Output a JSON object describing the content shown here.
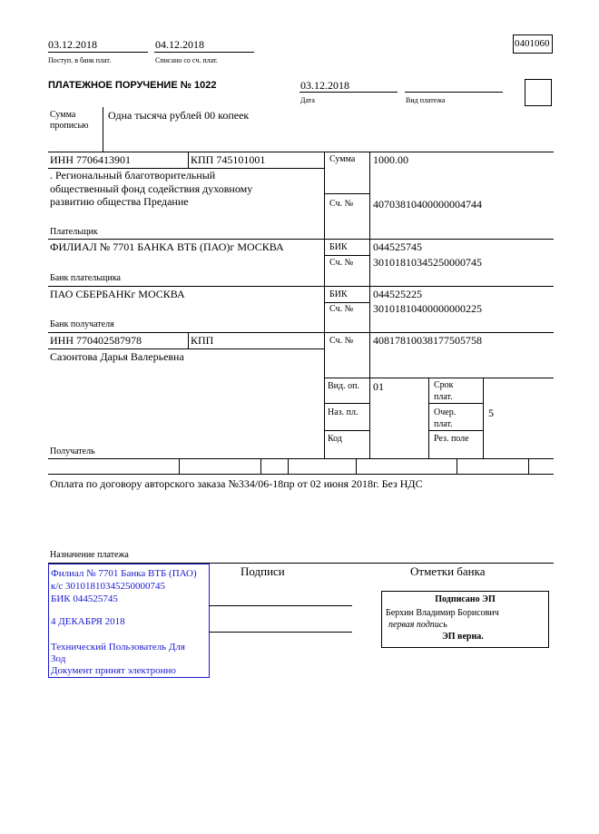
{
  "header": {
    "received_date": "03.12.2018",
    "received_label": "Поступ. в банк плат.",
    "debited_date": "04.12.2018",
    "debited_label": "Списано со сч. плат.",
    "form_code": "0401060"
  },
  "title": "ПЛАТЕЖНОЕ ПОРУЧЕНИЕ № 1022",
  "date": "03.12.2018",
  "date_label": "Дата",
  "payment_type_label": "Вид платежа",
  "amount_words_label_1": "Сумма",
  "amount_words_label_2": "прописью",
  "amount_words": "Одна тысяча рублей 00 копеек",
  "payer": {
    "inn": "ИНН 7706413901",
    "kpp": "КПП 745101001",
    "name_1": ". Региональный благотворительный",
    "name_2": "общественный фонд содействия духовному",
    "name_3": "развитию общества Предание",
    "label": "Плательщик",
    "account_label": "Сч. №",
    "account": "40703810400000004744"
  },
  "amount_label": "Сумма",
  "amount": "1000.00",
  "payer_bank": {
    "name": "ФИЛИАЛ № 7701 БАНКА ВТБ (ПАО)г МОСКВА",
    "label": "Банк плательщика",
    "bik_label": "БИК",
    "bik": "044525745",
    "acc_label": "Сч. №",
    "acc": "30101810345250000745"
  },
  "payee_bank": {
    "name": "ПАО СБЕРБАНКг МОСКВА",
    "label": "Банк получателя",
    "bik_label": "БИК",
    "bik": "044525225",
    "acc_label": "Сч. №",
    "acc": "30101810400000000225"
  },
  "payee": {
    "inn": "ИНН 770402587978",
    "kpp": "КПП",
    "name": "Сазонтова Дарья Валерьевна",
    "label": "Получатель",
    "account_label": "Сч. №",
    "account": "40817810038177505758"
  },
  "codes": {
    "vid_op_label": "Вид. оп.",
    "vid_op": "01",
    "srok_label_1": "Срок",
    "srok_label_2": "плат.",
    "naz_label": "Наз. пл.",
    "ocher_label_1": "Очер.",
    "ocher_label_2": "плат.",
    "ocher": "5",
    "kod_label": "Код",
    "rez_label": "Рез. поле"
  },
  "purpose": "Оплата по договору авторского заказа №334/06-18пр от 02 июня 2018г. Без НДС",
  "purpose_label": "Назначение платежа",
  "stamp": {
    "line1": "Филиал № 7701 Банка ВТБ (ПАО)",
    "line2": "к/с 30101810345250000745",
    "line3": "БИК 044525745",
    "line4": "4 ДЕКАБРЯ 2018",
    "line5": "Технический Пользователь Для",
    "line6": "Зод",
    "line7": "Документ принят электронно",
    "color": "#1a1ad0"
  },
  "signatures_label": "Подписи",
  "bank_marks_label": "Отметки банка",
  "esign": {
    "title": "Подписано ЭП",
    "signer": "Берхин Владимир Борисович",
    "role": "первая подпись",
    "status": "ЭП верна."
  }
}
